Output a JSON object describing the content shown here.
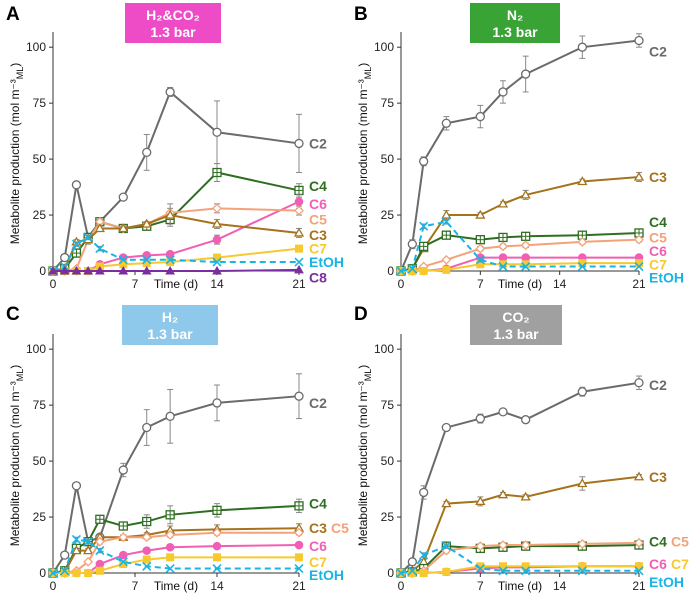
{
  "ylabel": "Metabolite production (mol m⁻³",
  "ylabel_sub": "ML",
  "ylabel_end": ")",
  "xlabel": "Time (d)",
  "yticks": [
    0,
    25,
    50,
    75,
    100
  ],
  "xticks": [
    0,
    7,
    14,
    21
  ],
  "series_styles": {
    "C2": {
      "color": "#6b6b6b",
      "marker": "circle"
    },
    "C3": {
      "color": "#a4731c",
      "marker": "triangle"
    },
    "C4": {
      "color": "#2f6e22",
      "marker": "square-plus"
    },
    "C5": {
      "color": "#f4a279",
      "marker": "diamond"
    },
    "C6": {
      "color": "#f15fb5",
      "marker": "dot"
    },
    "C7": {
      "color": "#f7c92e",
      "marker": "square"
    },
    "EtOH": {
      "color": "#18b4e6",
      "marker": "cross",
      "dashed": true
    },
    "C8": {
      "color": "#7a2fa0",
      "marker": "tri-fill"
    }
  },
  "chart_data": [
    {
      "type": "line",
      "panel": "A",
      "title_line1": "H₂&CO₂",
      "title_line2": "1.3 bar",
      "title_color": "#ee4bc6",
      "xlabel": "Time (d)",
      "ylabel": "Metabolite production (mol m-3 ML)",
      "xlim": [
        0,
        21
      ],
      "ylim": [
        0,
        105
      ],
      "x": [
        0,
        1,
        2,
        3,
        4,
        6,
        8,
        10,
        14,
        21
      ],
      "series": [
        {
          "name": "C2",
          "values": [
            0,
            6,
            38.5,
            15,
            22,
            33,
            53,
            80,
            62,
            57
          ],
          "err": [
            0,
            1,
            1,
            1,
            1,
            1,
            8,
            2,
            14,
            13
          ]
        },
        {
          "name": "C4",
          "values": [
            0,
            1,
            8,
            15,
            22,
            19,
            20,
            23,
            44,
            36
          ],
          "err": [
            0,
            0.5,
            1,
            1,
            1,
            1,
            1,
            2,
            4,
            3
          ]
        },
        {
          "name": "C6",
          "values": [
            0,
            0,
            0,
            0,
            3,
            6,
            7,
            7.5,
            14,
            31
          ],
          "err": [
            0,
            0,
            0,
            0,
            0.5,
            0.5,
            0.5,
            1,
            2,
            3
          ]
        },
        {
          "name": "C5",
          "values": [
            0,
            0,
            1,
            14,
            22,
            19,
            21,
            26,
            28,
            27
          ],
          "err": [
            0,
            0,
            0.5,
            1,
            1,
            1,
            1,
            2,
            2,
            2
          ]
        },
        {
          "name": "C3",
          "values": [
            0,
            1,
            13,
            14,
            19,
            19,
            21,
            25,
            21,
            17
          ],
          "err": [
            0,
            0.5,
            1,
            2,
            1,
            1,
            1,
            5,
            2,
            2
          ]
        },
        {
          "name": "C7",
          "values": [
            0,
            0,
            0,
            0,
            2,
            3,
            3.5,
            4,
            6,
            10
          ],
          "err": [
            0,
            0,
            0,
            0,
            0.3,
            0.3,
            0.3,
            0.5,
            1,
            1
          ]
        },
        {
          "name": "EtOH",
          "values": [
            0,
            2,
            12,
            15,
            10,
            5,
            5,
            5,
            4,
            4
          ],
          "err": [
            0,
            0.5,
            1,
            1,
            1,
            0.5,
            0.5,
            0.5,
            0.5,
            0.5
          ]
        },
        {
          "name": "C8",
          "values": [
            0,
            0,
            0,
            0,
            0,
            0,
            0,
            0,
            0,
            0.5
          ],
          "err": [
            0,
            0,
            0,
            0,
            0,
            0,
            0,
            0,
            0,
            0
          ]
        }
      ],
      "labels": [
        {
          "text": "C2",
          "series": "C2",
          "y": 57
        },
        {
          "text": "C4",
          "series": "C4",
          "y": 38
        },
        {
          "text": "C6",
          "series": "C6",
          "y": 30
        },
        {
          "text": "C5",
          "series": "C5",
          "y": 23
        },
        {
          "text": "C3",
          "series": "C3",
          "y": 16
        },
        {
          "text": "C7",
          "series": "C7",
          "y": 10
        },
        {
          "text": "EtOH",
          "series": "EtOH",
          "y": 4
        },
        {
          "text": "C8",
          "series": "C8",
          "y": -3
        }
      ]
    },
    {
      "type": "line",
      "panel": "B",
      "title_line1": "N₂",
      "title_line2": "1.3 bar",
      "title_color": "#3aa335",
      "xlabel": "Time (d)",
      "ylabel": "Metabolite production (mol m-3 ML)",
      "xlim": [
        0,
        21
      ],
      "ylim": [
        0,
        105
      ],
      "x": [
        0,
        1,
        2,
        4,
        7,
        9,
        11,
        16,
        21
      ],
      "series": [
        {
          "name": "C2",
          "values": [
            0,
            12,
            49,
            66,
            69,
            80,
            88,
            100,
            103
          ],
          "err": [
            0,
            2,
            2,
            3,
            5,
            5,
            8,
            5,
            3
          ]
        },
        {
          "name": "C3",
          "values": [
            0,
            1,
            10,
            25,
            25,
            30,
            34,
            40,
            42
          ],
          "err": [
            0,
            0.5,
            1,
            2,
            1,
            1,
            2,
            1,
            2
          ]
        },
        {
          "name": "C4",
          "values": [
            0,
            1,
            11,
            16,
            14,
            15,
            15.5,
            16,
            17
          ],
          "err": [
            0,
            0.5,
            1,
            1,
            1,
            1,
            1,
            1,
            1
          ]
        },
        {
          "name": "C5",
          "values": [
            0,
            0,
            2,
            5,
            10,
            11,
            11.5,
            13,
            14
          ],
          "err": [
            0,
            0,
            0.5,
            0.5,
            1,
            1,
            1,
            1,
            1
          ]
        },
        {
          "name": "C6",
          "values": [
            0,
            0,
            0,
            1,
            6,
            6,
            6,
            6,
            6
          ],
          "err": [
            0,
            0,
            0,
            0.3,
            0.5,
            0.5,
            0.5,
            0.5,
            0.5
          ]
        },
        {
          "name": "C7",
          "values": [
            0,
            0,
            0,
            0.5,
            3,
            3,
            3,
            3.5,
            3.5
          ],
          "err": [
            0,
            0,
            0,
            0.2,
            0.3,
            0.3,
            0.3,
            0.3,
            0.3
          ]
        },
        {
          "name": "EtOH",
          "values": [
            0,
            1,
            20,
            22,
            5,
            2,
            2,
            2,
            2
          ],
          "err": [
            0,
            0.5,
            1,
            1,
            1,
            0.5,
            0.5,
            0.5,
            0.5
          ]
        }
      ],
      "labels": [
        {
          "text": "C2",
          "series": "C2",
          "y": 98
        },
        {
          "text": "C3",
          "series": "C3",
          "y": 42
        },
        {
          "text": "C4",
          "series": "C4",
          "y": 22
        },
        {
          "text": "C5",
          "series": "C5",
          "y": 15
        },
        {
          "text": "C6",
          "series": "C6",
          "y": 9
        },
        {
          "text": "C7",
          "series": "C7",
          "y": 3
        },
        {
          "text": "EtOH",
          "series": "EtOH",
          "y": -3
        }
      ]
    },
    {
      "type": "line",
      "panel": "C",
      "title_line1": "H₂",
      "title_line2": "1.3 bar",
      "title_color": "#8ec8ea",
      "xlabel": "Time (d)",
      "ylabel": "Metabolite production (mol m-3 ML)",
      "xlim": [
        0,
        21
      ],
      "ylim": [
        0,
        105
      ],
      "x": [
        0,
        1,
        2,
        3,
        4,
        6,
        8,
        10,
        14,
        21
      ],
      "series": [
        {
          "name": "C2",
          "values": [
            0,
            8,
            39,
            14,
            16,
            46,
            65,
            70,
            76,
            79
          ],
          "err": [
            0,
            1,
            1,
            1,
            1,
            3,
            8,
            12,
            8,
            10
          ]
        },
        {
          "name": "C4",
          "values": [
            0,
            1,
            11,
            14,
            24,
            21,
            23,
            26,
            28,
            30
          ],
          "err": [
            0,
            0.5,
            1,
            1,
            1,
            1,
            3,
            4,
            3,
            3
          ]
        },
        {
          "name": "C3",
          "values": [
            0,
            0.5,
            10,
            10,
            16,
            16,
            17,
            19,
            19.5,
            20
          ],
          "err": [
            0,
            0.3,
            1,
            1,
            1,
            1,
            1,
            2,
            2,
            2
          ]
        },
        {
          "name": "C5",
          "values": [
            0,
            0,
            1,
            5,
            14,
            16,
            16,
            17,
            18,
            18
          ],
          "err": [
            0,
            0,
            0.3,
            0.5,
            1,
            1,
            1,
            1,
            1,
            1
          ]
        },
        {
          "name": "C6",
          "values": [
            0,
            0,
            0,
            0,
            4,
            8,
            10,
            11.5,
            12,
            12.5
          ],
          "err": [
            0,
            0,
            0,
            0,
            0.5,
            0.5,
            1,
            1,
            1,
            1
          ]
        },
        {
          "name": "C7",
          "values": [
            0,
            0,
            0,
            0,
            1,
            4,
            6,
            7,
            7,
            7
          ],
          "err": [
            0,
            0,
            0,
            0,
            0.2,
            0.3,
            0.5,
            0.5,
            0.5,
            0.5
          ]
        },
        {
          "name": "EtOH",
          "values": [
            0,
            1,
            15,
            14,
            10,
            5,
            3,
            2,
            2,
            2
          ],
          "err": [
            0,
            0.3,
            1,
            1,
            1,
            0.5,
            0.5,
            0.3,
            0.3,
            0.3
          ]
        }
      ],
      "labels": [
        {
          "text": "C2",
          "series": "C2",
          "y": 76
        },
        {
          "text": "C4",
          "series": "C4",
          "y": 31
        },
        {
          "text": "C3",
          "series": "C3",
          "y": 20
        },
        {
          "text": "C5",
          "series": "C5",
          "y": 20,
          "dx": 22
        },
        {
          "text": "C6",
          "series": "C6",
          "y": 12
        },
        {
          "text": "C7",
          "series": "C7",
          "y": 5
        },
        {
          "text": "EtOH",
          "series": "EtOH",
          "y": -1
        }
      ]
    },
    {
      "type": "line",
      "panel": "D",
      "title_line1": "CO₂",
      "title_line2": "1.3 bar",
      "title_color": "#a0a0a0",
      "xlabel": "Time (d)",
      "ylabel": "Metabolite production (mol m-3 ML)",
      "xlim": [
        0,
        21
      ],
      "ylim": [
        0,
        105
      ],
      "x": [
        0,
        1,
        2,
        4,
        7,
        9,
        11,
        16,
        21
      ],
      "series": [
        {
          "name": "C2",
          "values": [
            0,
            5,
            36,
            65,
            69,
            72,
            68.5,
            81,
            85
          ],
          "err": [
            0,
            1,
            3,
            1,
            2,
            1,
            1,
            2,
            3
          ]
        },
        {
          "name": "C3",
          "values": [
            0,
            1,
            5,
            31,
            32,
            35,
            34,
            40,
            43
          ],
          "err": [
            0,
            0.3,
            1,
            1,
            2,
            1,
            1,
            3,
            1
          ]
        },
        {
          "name": "C4",
          "values": [
            0,
            0.5,
            2,
            12,
            11,
            11.5,
            12,
            12,
            12.5
          ],
          "err": [
            0,
            0.2,
            0.5,
            1,
            1,
            1,
            1,
            1,
            1
          ]
        },
        {
          "name": "C5",
          "values": [
            0,
            0,
            1,
            10,
            12,
            12.5,
            12.5,
            13,
            13.5
          ],
          "err": [
            0,
            0,
            0.3,
            1,
            1,
            1,
            1,
            1,
            1
          ]
        },
        {
          "name": "C6",
          "values": [
            0,
            0,
            0,
            0.5,
            2,
            2.5,
            2.5,
            3,
            3
          ],
          "err": [
            0,
            0,
            0,
            0.2,
            0.3,
            0.3,
            0.3,
            0.3,
            0.3
          ]
        },
        {
          "name": "C7",
          "values": [
            0,
            0,
            0,
            0.5,
            3,
            3,
            3,
            3,
            3
          ],
          "err": [
            0,
            0,
            0,
            0.2,
            0.3,
            0.3,
            0.3,
            0.3,
            0.3
          ]
        },
        {
          "name": "EtOH",
          "values": [
            0,
            1,
            8,
            12,
            2,
            1,
            1,
            1,
            1
          ],
          "err": [
            0,
            0.3,
            1,
            1,
            0.5,
            0.3,
            0.3,
            0.3,
            0.3
          ]
        }
      ],
      "labels": [
        {
          "text": "C2",
          "series": "C2",
          "y": 84
        },
        {
          "text": "C3",
          "series": "C3",
          "y": 43
        },
        {
          "text": "C4",
          "series": "C4",
          "y": 14
        },
        {
          "text": "C5",
          "series": "C5",
          "y": 14,
          "dx": 22
        },
        {
          "text": "C6",
          "series": "C6",
          "y": 4
        },
        {
          "text": "C7",
          "series": "C7",
          "y": 4,
          "dx": 22
        },
        {
          "text": "EtOH",
          "series": "EtOH",
          "y": -4
        }
      ]
    }
  ]
}
